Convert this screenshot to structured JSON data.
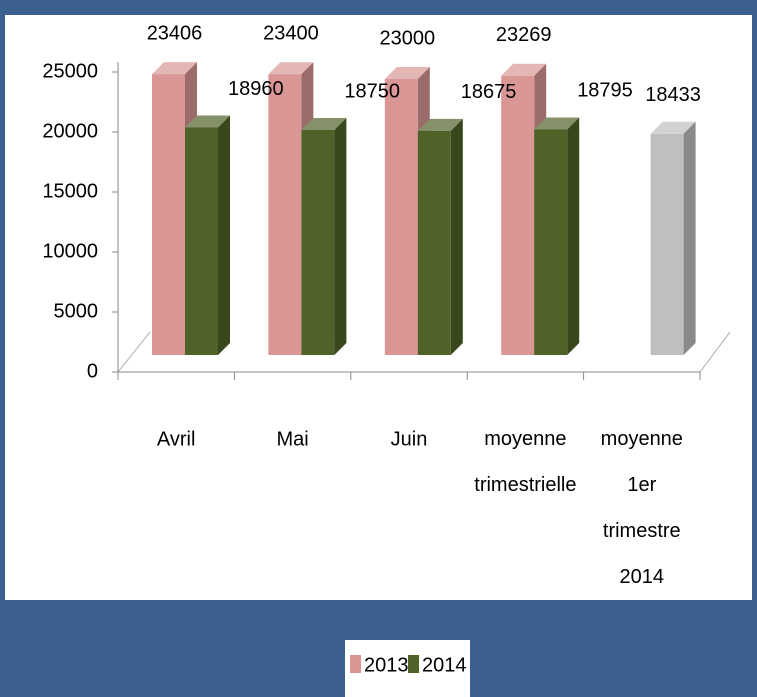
{
  "chart_data": {
    "type": "bar3d",
    "categories": [
      "Avril",
      "Mai",
      "Juin",
      "moyenne\ntrimestrielle",
      "moyenne\n1er\ntrimestre\n2014"
    ],
    "series": [
      {
        "name": "2013",
        "color": "#d99694",
        "values": [
          23406,
          23400,
          23000,
          23269,
          null
        ]
      },
      {
        "name": "2014",
        "color": "#4f6228",
        "values": [
          18960,
          18750,
          18675,
          18795,
          18433
        ],
        "point_colors": [
          "#4f6228",
          "#4f6228",
          "#4f6228",
          "#4f6228",
          "#bfbfbf"
        ]
      }
    ],
    "ylim": [
      0,
      25000
    ],
    "yticks": [
      0,
      5000,
      10000,
      15000,
      20000,
      25000
    ]
  }
}
